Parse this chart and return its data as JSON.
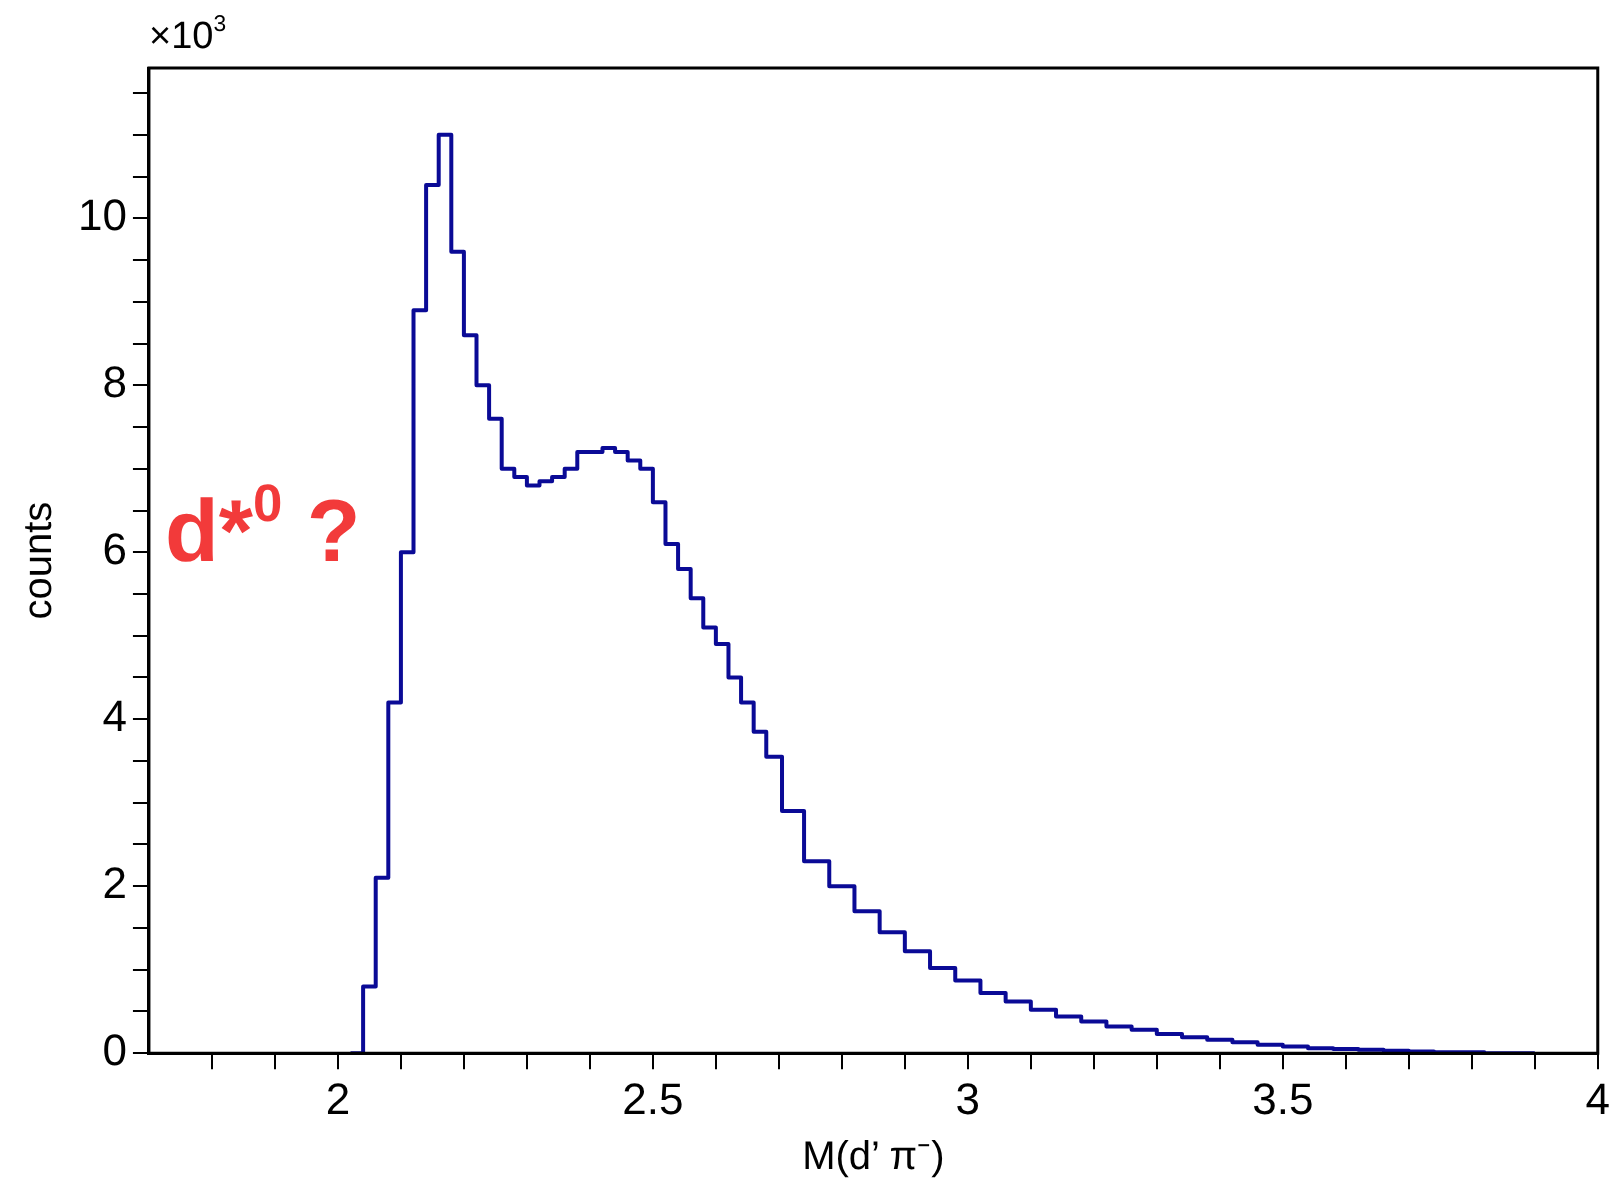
{
  "chart_data": {
    "type": "histogram",
    "xlabel": "M(d’ π⁻)",
    "ylabel": "counts",
    "annotations": [
      "×10$^{3}$",
      "d*$^{0}$ ?"
    ],
    "bins": [
      2.02,
      2.04,
      2.06,
      2.08,
      2.1,
      2.12,
      2.14,
      2.16,
      2.18,
      2.2,
      2.22,
      2.24,
      2.26,
      2.28,
      2.3,
      2.32,
      2.34,
      2.36,
      2.38,
      2.4,
      2.42,
      2.44,
      2.46,
      2.48,
      2.5,
      2.52,
      2.54,
      2.56,
      2.58,
      2.6,
      2.62,
      2.64,
      2.66,
      2.68,
      2.7,
      2.74,
      2.78,
      2.82,
      2.86,
      2.9,
      2.94,
      2.98,
      3.02,
      3.06,
      3.1,
      3.14,
      3.18,
      3.22,
      3.26,
      3.3,
      3.34,
      3.38,
      3.42,
      3.46,
      3.5,
      3.54,
      3.58,
      3.62,
      3.66,
      3.7,
      3.74,
      3.78,
      3.82,
      3.86,
      3.9
    ],
    "values": [
      0,
      0.8,
      2.1,
      4.2,
      6.0,
      8.9,
      10.4,
      11.0,
      9.6,
      8.6,
      8.0,
      7.6,
      7.0,
      6.9,
      6.8,
      6.85,
      6.9,
      7.0,
      7.2,
      7.2,
      7.25,
      7.2,
      7.1,
      7.0,
      6.6,
      6.1,
      5.8,
      5.45,
      5.1,
      4.9,
      4.5,
      4.2,
      3.85,
      3.55,
      2.9,
      2.3,
      2.0,
      1.7,
      1.45,
      1.22,
      1.02,
      0.87,
      0.72,
      0.62,
      0.52,
      0.44,
      0.38,
      0.32,
      0.28,
      0.23,
      0.19,
      0.16,
      0.13,
      0.1,
      0.08,
      0.06,
      0.05,
      0.04,
      0.03,
      0.02,
      0.01,
      0.01,
      0,
      0
    ],
    "color": "#0a0a96",
    "xlim": [
      1.7,
      4
    ],
    "xticks": [
      {
        "value": 1.8,
        "label": null
      },
      {
        "value": 1.9,
        "label": null
      },
      2,
      {
        "value": 2.1,
        "label": null
      },
      {
        "value": 2.2,
        "label": null
      },
      {
        "value": 2.3,
        "label": null
      },
      {
        "value": 2.4,
        "label": null
      },
      2.5,
      {
        "value": 2.6,
        "label": null
      },
      {
        "value": 2.7,
        "label": null
      },
      {
        "value": 2.8,
        "label": null
      },
      {
        "value": 2.9,
        "label": null
      },
      3,
      {
        "value": 3.1,
        "label": null
      },
      {
        "value": 3.2,
        "label": null
      },
      {
        "value": 3.3,
        "label": null
      },
      {
        "value": 3.4,
        "label": null
      },
      3.5,
      {
        "value": 3.6,
        "label": null
      },
      {
        "value": 3.7,
        "label": null
      },
      {
        "value": 3.8,
        "label": null
      },
      {
        "value": 3.9,
        "label": null
      },
      4
    ],
    "ylim": [
      0,
      11.8
    ],
    "yticks": [
      0,
      {
        "value": 0.5,
        "label": null
      },
      {
        "value": 1,
        "label": null
      },
      {
        "value": 1.5,
        "label": null
      },
      2,
      {
        "value": 2.5,
        "label": null
      },
      {
        "value": 3,
        "label": null
      },
      {
        "value": 3.5,
        "label": null
      },
      4,
      {
        "value": 4.5,
        "label": null
      },
      {
        "value": 5,
        "label": null
      },
      {
        "value": 5.5,
        "label": null
      },
      6,
      {
        "value": 6.5,
        "label": null
      },
      {
        "value": 7,
        "label": null
      },
      {
        "value": 7.5,
        "label": null
      },
      8,
      {
        "value": 8.5,
        "label": null
      },
      {
        "value": 9,
        "label": null
      },
      {
        "value": 9.5,
        "label": null
      },
      10,
      {
        "value": 10.5,
        "label": null
      },
      {
        "value": 11,
        "label": null
      },
      {
        "value": 11.5,
        "label": null
      }
    ],
    "grid": false,
    "legend": false
  }
}
